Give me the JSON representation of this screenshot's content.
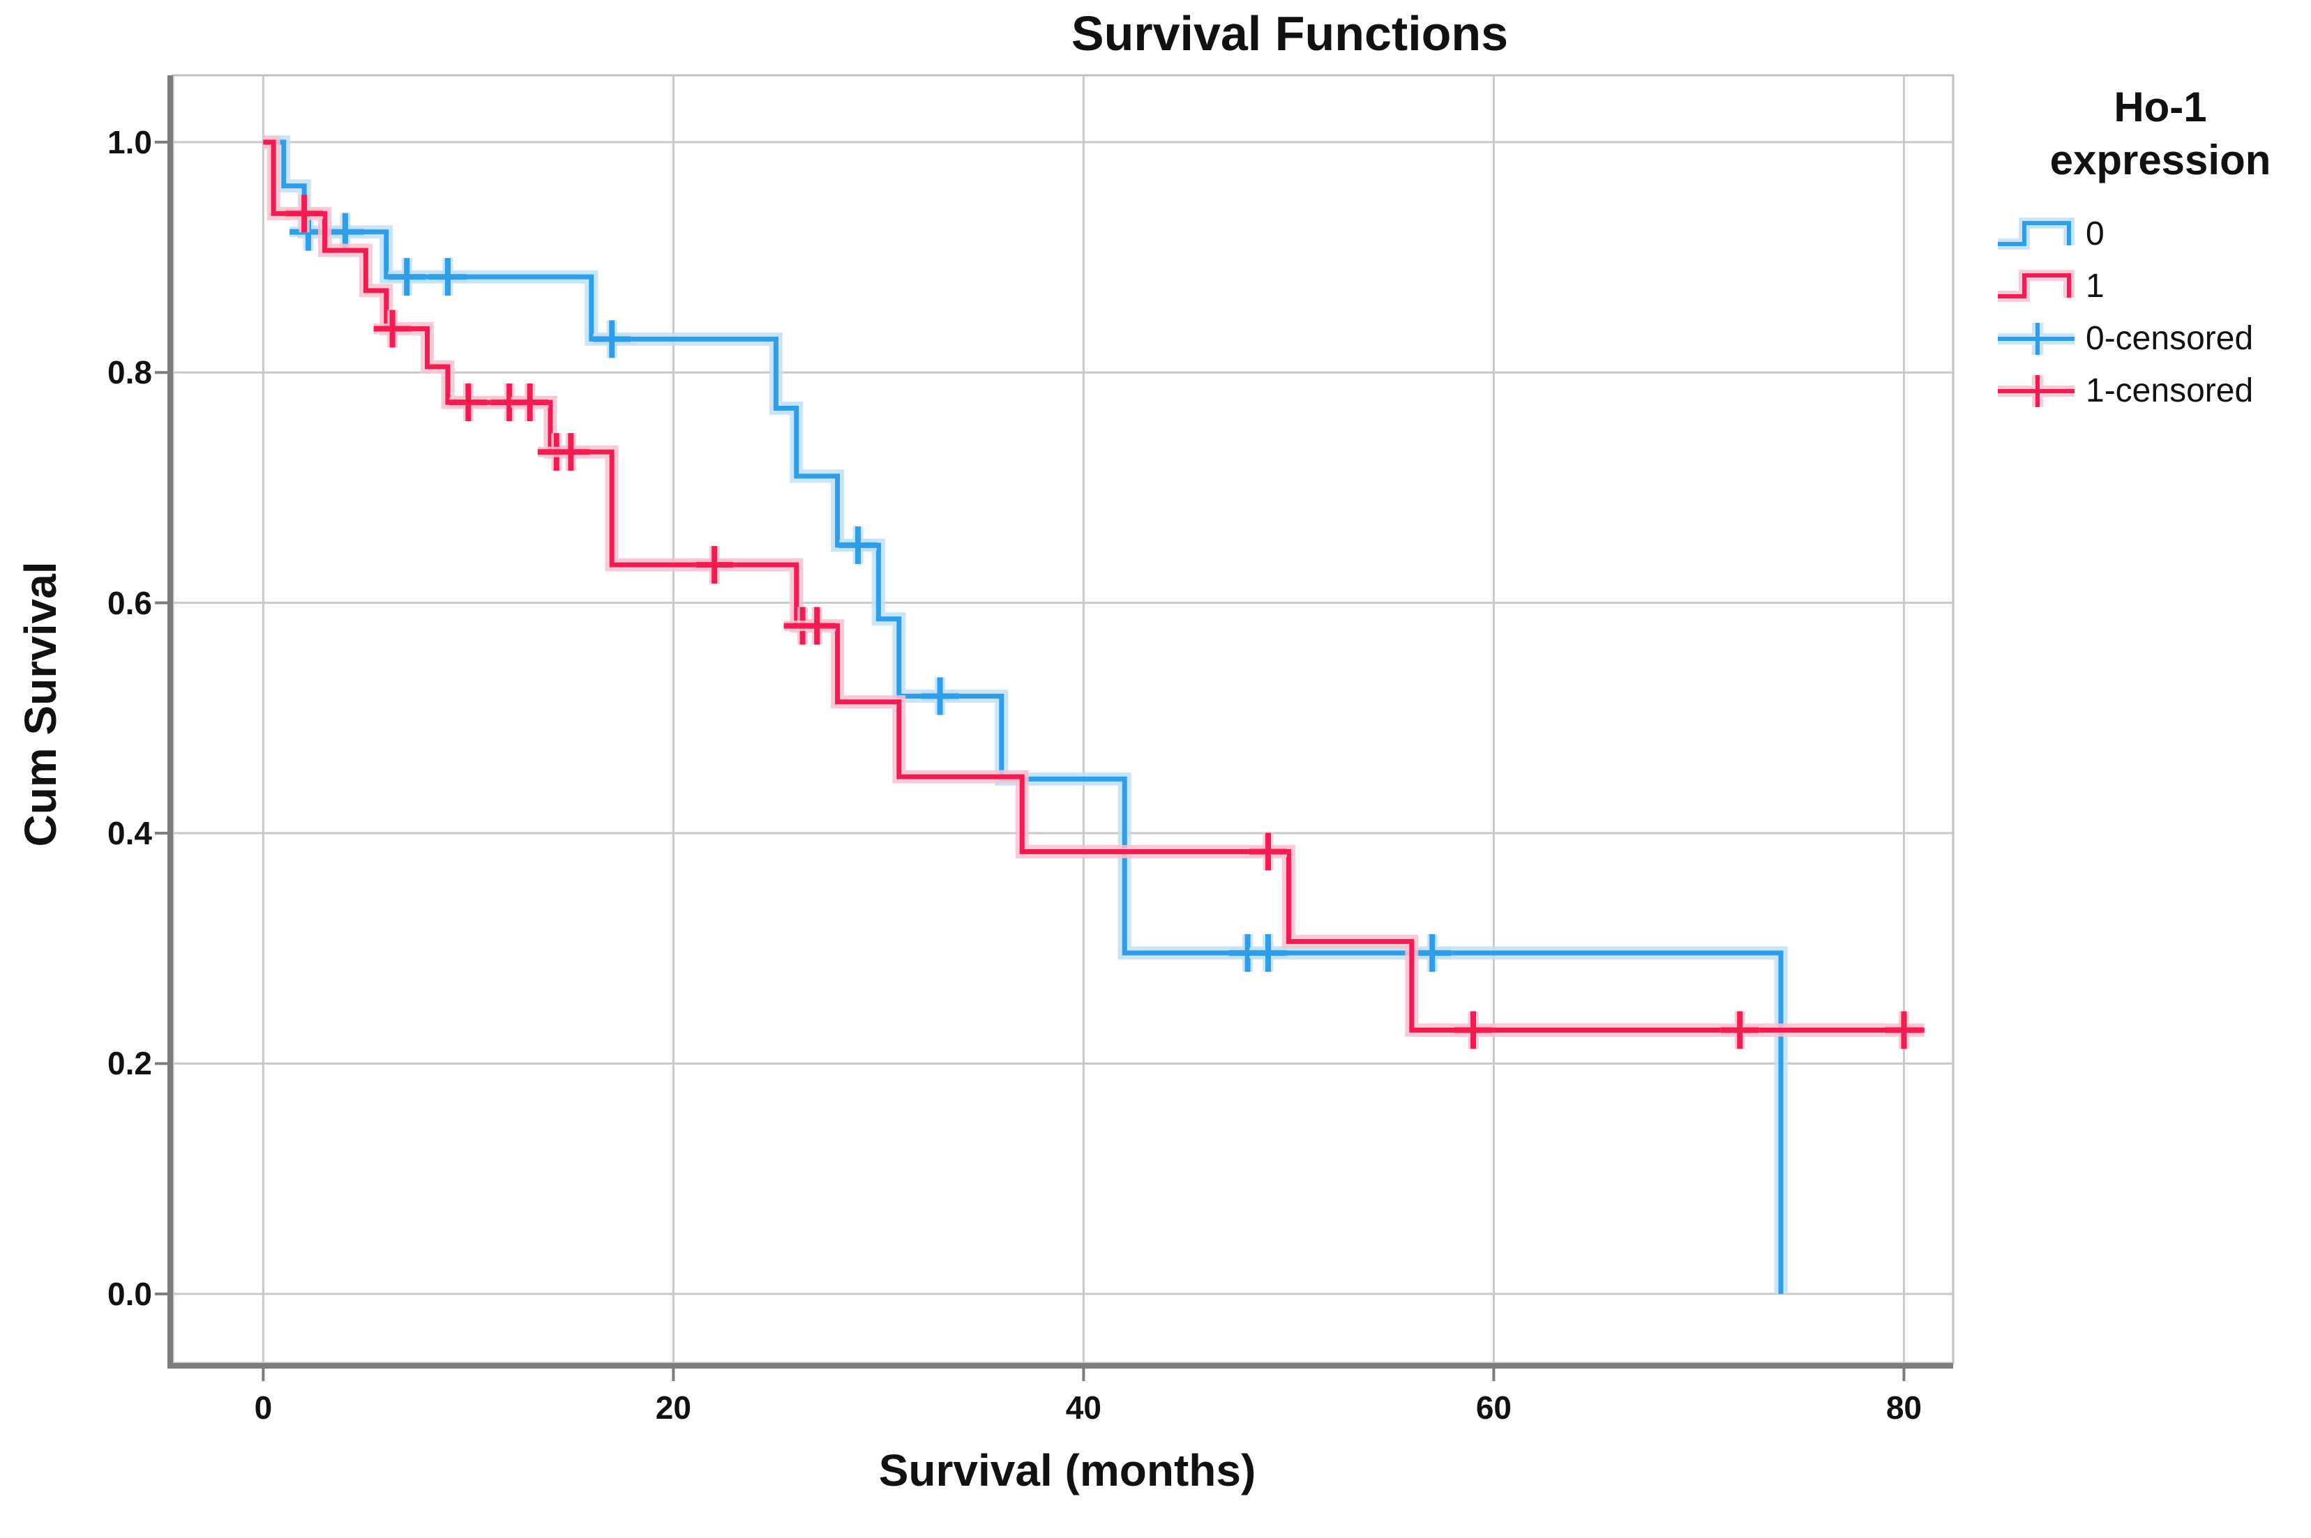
{
  "chart_data": {
    "type": "line",
    "subtype": "kaplan-meier-step-survival",
    "title": "Survival Functions",
    "xlabel": "Survival (months)",
    "ylabel": "Cum Survival",
    "x_ticks": [
      "0",
      "20",
      "40",
      "60",
      "80"
    ],
    "y_ticks": [
      "1.0",
      "0.8",
      "0.6",
      "0.4",
      "0.2",
      "0.0"
    ],
    "x_tick_values": [
      0,
      20,
      40,
      60,
      80
    ],
    "y_tick_values": [
      1.0,
      0.8,
      0.6,
      0.4,
      0.2,
      0.0
    ],
    "xlim": [
      -4.4,
      82.4
    ],
    "ylim": [
      -0.06,
      1.058
    ],
    "grid": true,
    "legend": {
      "position": "right",
      "title_line1": "Ho-1",
      "title_line2": "expression",
      "entries": [
        {
          "label": "0",
          "series": 0,
          "kind": "step"
        },
        {
          "label": "1",
          "series": 1,
          "kind": "step"
        },
        {
          "label": "0-censored",
          "series": 0,
          "kind": "censored"
        },
        {
          "label": "1-censored",
          "series": 1,
          "kind": "censored"
        }
      ]
    },
    "series": [
      {
        "name": "0",
        "color": "#2F9DE8",
        "halo": "#BFE0F8",
        "steps": [
          [
            0,
            1.0
          ],
          [
            1,
            0.962
          ],
          [
            2,
            0.922
          ],
          [
            6,
            0.883
          ],
          [
            16,
            0.829
          ],
          [
            25,
            0.769
          ],
          [
            26,
            0.71
          ],
          [
            28,
            0.65
          ],
          [
            30,
            0.586
          ],
          [
            31,
            0.519
          ],
          [
            36,
            0.447
          ],
          [
            42,
            0.296
          ],
          [
            74,
            0.0
          ]
        ],
        "end": 74,
        "censored": [
          [
            2.2,
            0.922
          ],
          [
            4,
            0.922
          ],
          [
            7,
            0.883
          ],
          [
            9,
            0.883
          ],
          [
            17,
            0.829
          ],
          [
            29,
            0.65
          ],
          [
            33,
            0.519
          ],
          [
            48,
            0.296
          ],
          [
            49,
            0.296
          ],
          [
            57,
            0.296
          ]
        ]
      },
      {
        "name": "1",
        "color": "#F01D53",
        "halo": "#FBC0CF",
        "steps": [
          [
            0,
            1.0
          ],
          [
            0.5,
            0.938
          ],
          [
            3,
            0.906
          ],
          [
            5,
            0.871
          ],
          [
            6,
            0.838
          ],
          [
            8,
            0.805
          ],
          [
            9,
            0.774
          ],
          [
            14,
            0.731
          ],
          [
            17,
            0.633
          ],
          [
            26,
            0.58
          ],
          [
            28,
            0.514
          ],
          [
            31,
            0.449
          ],
          [
            37,
            0.384
          ],
          [
            50,
            0.306
          ],
          [
            56,
            0.229
          ]
        ],
        "end": 81,
        "censored": [
          [
            2,
            0.938
          ],
          [
            6.3,
            0.838
          ],
          [
            10,
            0.774
          ],
          [
            12,
            0.774
          ],
          [
            13,
            0.774
          ],
          [
            14.3,
            0.731
          ],
          [
            15,
            0.731
          ],
          [
            22,
            0.633
          ],
          [
            26.3,
            0.58
          ],
          [
            27,
            0.58
          ],
          [
            49,
            0.384
          ],
          [
            59,
            0.229
          ],
          [
            72,
            0.229
          ],
          [
            80,
            0.229
          ]
        ]
      }
    ],
    "colors": {
      "axis": "#7d7d7d",
      "grid": "#c9c9c9",
      "frame": "#c2c2c2",
      "text": "#111111",
      "background": "#ffffff"
    }
  }
}
